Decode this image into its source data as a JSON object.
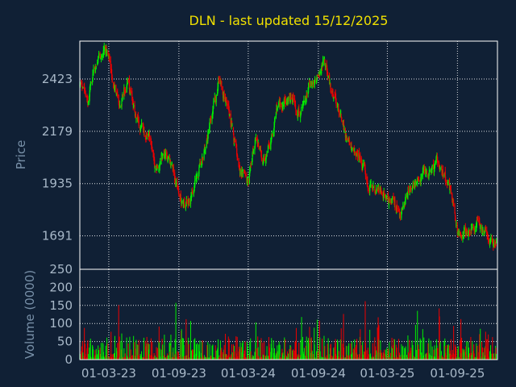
{
  "chart_data": {
    "title": "DLN - last updated 15/12/2025",
    "colors": {
      "background": "#102035",
      "up": "#00ee00",
      "down": "#ee0000",
      "grid": "#ffffff",
      "title": "#f0e000",
      "tick_text": "#a8b8c8",
      "axis_label": "#7890a8"
    },
    "price_panel": {
      "type": "candlestick",
      "ylabel": "Price",
      "ylim": [
        1535,
        2600
      ],
      "y_ticks": [
        {
          "value": 1691,
          "label": "1691"
        },
        {
          "value": 1935,
          "label": "1935"
        },
        {
          "value": 2179,
          "label": "2179"
        },
        {
          "value": 2423,
          "label": "2423"
        }
      ],
      "grid": true
    },
    "volume_panel": {
      "type": "bar",
      "ylabel": "Volume (0000)",
      "ylim": [
        0,
        250
      ],
      "y_ticks": [
        {
          "value": 0,
          "label": "0"
        },
        {
          "value": 50,
          "label": "50"
        },
        {
          "value": 100,
          "label": "100"
        },
        {
          "value": 150,
          "label": "150"
        },
        {
          "value": 200,
          "label": "200"
        },
        {
          "value": 250,
          "label": "250"
        }
      ],
      "grid": true
    },
    "x_axis": {
      "ticks": [
        {
          "date": "2023-03-01",
          "label": "01-03-23"
        },
        {
          "date": "2023-09-01",
          "label": "01-09-23"
        },
        {
          "date": "2024-03-01",
          "label": "01-03-24"
        },
        {
          "date": "2024-09-01",
          "label": "01-09-24"
        },
        {
          "date": "2025-03-01",
          "label": "01-03-25"
        },
        {
          "date": "2025-09-01",
          "label": "01-09-25"
        }
      ]
    },
    "price_anchors": [
      [
        "2022-12-15",
        2390
      ],
      [
        "2023-01-05",
        2340
      ],
      [
        "2023-02-01",
        2520
      ],
      [
        "2023-02-15",
        2560
      ],
      [
        "2023-03-01",
        2500
      ],
      [
        "2023-04-01",
        2280
      ],
      [
        "2023-04-20",
        2430
      ],
      [
        "2023-05-15",
        2230
      ],
      [
        "2023-06-15",
        2150
      ],
      [
        "2023-07-01",
        1990
      ],
      [
        "2023-07-20",
        2080
      ],
      [
        "2023-08-15",
        2000
      ],
      [
        "2023-09-01",
        1880
      ],
      [
        "2023-09-25",
        1820
      ],
      [
        "2023-10-15",
        1930
      ],
      [
        "2023-11-15",
        2150
      ],
      [
        "2023-12-15",
        2420
      ],
      [
        "2024-01-10",
        2280
      ],
      [
        "2024-02-05",
        2000
      ],
      [
        "2024-03-01",
        1930
      ],
      [
        "2024-03-20",
        2150
      ],
      [
        "2024-04-15",
        2040
      ],
      [
        "2024-05-15",
        2250
      ],
      [
        "2024-06-15",
        2350
      ],
      [
        "2024-07-15",
        2250
      ],
      [
        "2024-08-10",
        2380
      ],
      [
        "2024-09-01",
        2410
      ],
      [
        "2024-09-15",
        2490
      ],
      [
        "2024-10-15",
        2320
      ],
      [
        "2024-11-15",
        2120
      ],
      [
        "2024-12-15",
        2080
      ],
      [
        "2025-01-10",
        1960
      ],
      [
        "2025-02-10",
        1900
      ],
      [
        "2025-03-01",
        1890
      ],
      [
        "2025-03-20",
        1850
      ],
      [
        "2025-04-05",
        1760
      ],
      [
        "2025-04-25",
        1900
      ],
      [
        "2025-05-20",
        1950
      ],
      [
        "2025-06-20",
        2000
      ],
      [
        "2025-07-15",
        2020
      ],
      [
        "2025-08-15",
        1900
      ],
      [
        "2025-09-01",
        1720
      ],
      [
        "2025-09-20",
        1700
      ],
      [
        "2025-10-15",
        1760
      ],
      [
        "2025-11-15",
        1700
      ],
      [
        "2025-12-15",
        1620
      ]
    ]
  }
}
